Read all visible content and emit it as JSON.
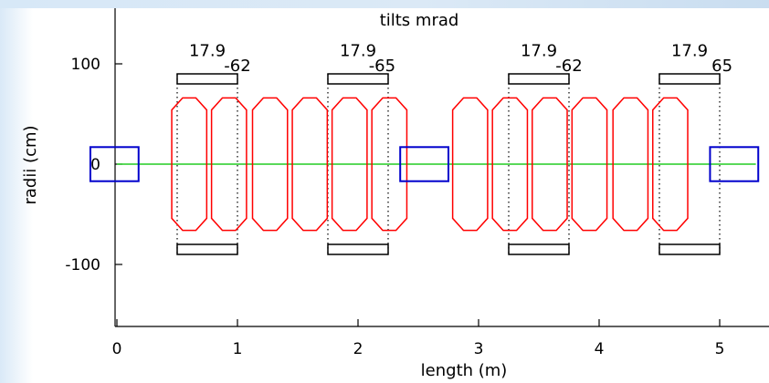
{
  "chart_data": {
    "type": "scatter",
    "title": "tilts mrad",
    "xlabel": "length    (m)",
    "ylabel": "radii    (cm)",
    "xlim": [
      0,
      5.3
    ],
    "ylim": [
      -150,
      150
    ],
    "x_ticks": [
      0,
      1,
      2,
      3,
      4,
      5
    ],
    "y_ticks": [
      100,
      0,
      -100
    ],
    "grid": false,
    "legend": "none",
    "colors": {
      "axis": "#000000",
      "beamline": "#22cc22",
      "magnet_outline": "#ff0000",
      "blue_box": "#0000cc",
      "black_box": "#000000",
      "band_top": "#d7e8f7"
    },
    "beamline": {
      "x": [
        0,
        5.3
      ],
      "y": [
        0,
        0
      ]
    },
    "blue_boxes": [
      {
        "x0": -0.22,
        "x1": 0.18,
        "y0": -17,
        "y1": 17
      },
      {
        "x0": 2.35,
        "x1": 2.75,
        "y0": -17,
        "y1": 17
      },
      {
        "x0": 4.92,
        "x1": 5.32,
        "y0": -17,
        "y1": 17
      }
    ],
    "red_octagons": [
      {
        "xc": 0.6,
        "width": 0.29,
        "height": 132,
        "chamfer_x": 0.09,
        "chamfer_y": 12
      },
      {
        "xc": 0.93,
        "width": 0.29,
        "height": 132,
        "chamfer_x": 0.09,
        "chamfer_y": 12
      },
      {
        "xc": 1.27,
        "width": 0.29,
        "height": 132,
        "chamfer_x": 0.09,
        "chamfer_y": 12
      },
      {
        "xc": 1.6,
        "width": 0.29,
        "height": 132,
        "chamfer_x": 0.09,
        "chamfer_y": 12
      },
      {
        "xc": 1.93,
        "width": 0.29,
        "height": 132,
        "chamfer_x": 0.09,
        "chamfer_y": 12
      },
      {
        "xc": 2.26,
        "width": 0.29,
        "height": 132,
        "chamfer_x": 0.09,
        "chamfer_y": 12
      },
      {
        "xc": 2.93,
        "width": 0.29,
        "height": 132,
        "chamfer_x": 0.09,
        "chamfer_y": 12
      },
      {
        "xc": 3.26,
        "width": 0.29,
        "height": 132,
        "chamfer_x": 0.09,
        "chamfer_y": 12
      },
      {
        "xc": 3.59,
        "width": 0.29,
        "height": 132,
        "chamfer_x": 0.09,
        "chamfer_y": 12
      },
      {
        "xc": 3.92,
        "width": 0.29,
        "height": 132,
        "chamfer_x": 0.09,
        "chamfer_y": 12
      },
      {
        "xc": 4.26,
        "width": 0.29,
        "height": 132,
        "chamfer_x": 0.09,
        "chamfer_y": 12
      },
      {
        "xc": 4.59,
        "width": 0.29,
        "height": 132,
        "chamfer_x": 0.09,
        "chamfer_y": 12
      }
    ],
    "black_bars": [
      {
        "x0": 0.5,
        "x1": 1.0,
        "y_top": 90,
        "y_bot": 80
      },
      {
        "x0": 0.5,
        "x1": 1.0,
        "y_top": -80,
        "y_bot": -90
      },
      {
        "x0": 1.75,
        "x1": 2.25,
        "y_top": 90,
        "y_bot": 80
      },
      {
        "x0": 1.75,
        "x1": 2.25,
        "y_top": -80,
        "y_bot": -90
      },
      {
        "x0": 3.25,
        "x1": 3.75,
        "y_top": 90,
        "y_bot": 80
      },
      {
        "x0": 3.25,
        "x1": 3.75,
        "y_top": -80,
        "y_bot": -90
      },
      {
        "x0": 4.5,
        "x1": 5.0,
        "y_top": 90,
        "y_bot": 80
      },
      {
        "x0": 4.5,
        "x1": 5.0,
        "y_top": -80,
        "y_bot": -90
      }
    ],
    "dotted_lines": [
      {
        "x": 0.5,
        "y0": -90,
        "y1": 90
      },
      {
        "x": 1.0,
        "y0": -90,
        "y1": 90
      },
      {
        "x": 1.75,
        "y0": -90,
        "y1": 90
      },
      {
        "x": 2.25,
        "y0": -90,
        "y1": 90
      },
      {
        "x": 3.25,
        "y0": -90,
        "y1": 90
      },
      {
        "x": 3.75,
        "y0": -90,
        "y1": 90
      },
      {
        "x": 4.5,
        "y0": -90,
        "y1": 90
      },
      {
        "x": 5.0,
        "y0": -90,
        "y1": 90
      }
    ],
    "annotations": [
      {
        "text": "17.9",
        "x": 0.75,
        "y": 113
      },
      {
        "text": "-62",
        "x": 1.0,
        "y": 98
      },
      {
        "text": "17.9",
        "x": 2.0,
        "y": 113
      },
      {
        "text": "-65",
        "x": 2.2,
        "y": 98
      },
      {
        "text": "17.9",
        "x": 3.5,
        "y": 113
      },
      {
        "text": "-62",
        "x": 3.75,
        "y": 98
      },
      {
        "text": "17.9",
        "x": 4.75,
        "y": 113
      },
      {
        "text": "65",
        "x": 5.02,
        "y": 98
      }
    ]
  }
}
